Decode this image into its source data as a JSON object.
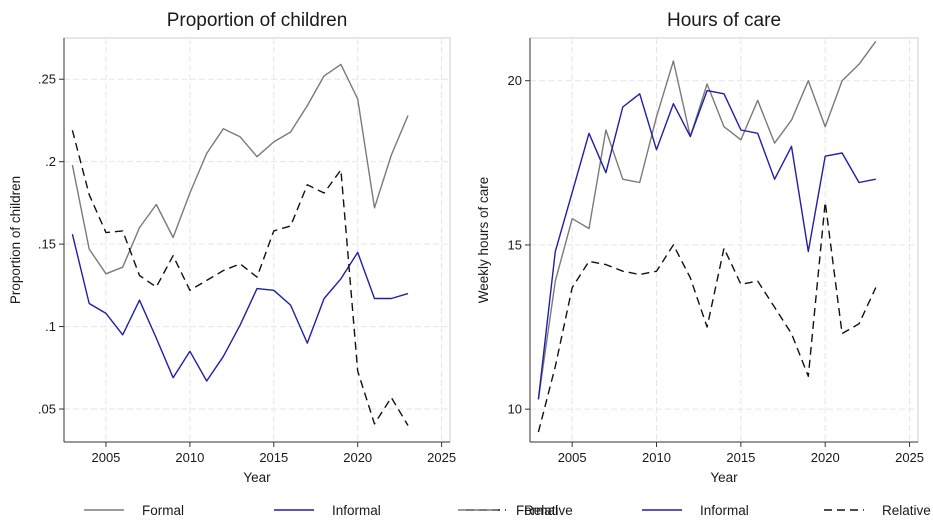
{
  "chart_data": [
    {
      "type": "line",
      "title": "Proportion of children",
      "xlabel": "Year",
      "ylabel": "Proportion of children",
      "xlim": [
        2002.5,
        2025.5
      ],
      "ylim": [
        0.03,
        0.275
      ],
      "xticks": [
        2005,
        2010,
        2015,
        2020,
        2025
      ],
      "xtick_labels": [
        "2005",
        "2010",
        "2015",
        "2020",
        "2025"
      ],
      "yticks": [
        0.05,
        0.1,
        0.15,
        0.2,
        0.25
      ],
      "ytick_labels": [
        ".05",
        ".1",
        ".15",
        ".2",
        ".25"
      ],
      "grid": true,
      "x": [
        2003,
        2004,
        2005,
        2006,
        2007,
        2008,
        2009,
        2010,
        2011,
        2012,
        2013,
        2014,
        2015,
        2016,
        2017,
        2018,
        2019,
        2020,
        2021,
        2022,
        2023
      ],
      "series": [
        {
          "name": "Formal",
          "color": "#7a7a7a",
          "dash": "solid",
          "values": [
            0.198,
            0.147,
            0.132,
            0.136,
            0.16,
            0.174,
            0.154,
            0.181,
            0.205,
            0.22,
            0.215,
            0.203,
            0.212,
            0.218,
            0.234,
            0.252,
            0.259,
            0.238,
            0.172,
            0.204,
            0.228
          ]
        },
        {
          "name": "Informal",
          "color": "#1f1fa8",
          "dash": "solid",
          "values": [
            0.156,
            0.114,
            0.108,
            0.095,
            0.116,
            0.093,
            0.069,
            0.085,
            0.067,
            0.082,
            0.101,
            0.123,
            0.122,
            0.113,
            0.09,
            0.117,
            0.129,
            0.145,
            0.117,
            0.117,
            0.12
          ]
        },
        {
          "name": "Relative",
          "color": "#111111",
          "dash": "dashed",
          "values": [
            0.219,
            0.18,
            0.157,
            0.158,
            0.131,
            0.124,
            0.143,
            0.122,
            0.128,
            0.134,
            0.138,
            0.13,
            0.158,
            0.161,
            0.186,
            0.181,
            0.195,
            0.073,
            0.041,
            0.057,
            0.04
          ]
        }
      ]
    },
    {
      "type": "line",
      "title": "Hours of care",
      "xlabel": "Year",
      "ylabel": "Weekly hours of care",
      "xlim": [
        2002.5,
        2025.5
      ],
      "ylim": [
        9.0,
        21.3
      ],
      "xticks": [
        2005,
        2010,
        2015,
        2020,
        2025
      ],
      "xtick_labels": [
        "2005",
        "2010",
        "2015",
        "2020",
        "2025"
      ],
      "yticks": [
        10,
        15,
        20
      ],
      "ytick_labels": [
        "10",
        "15",
        "20"
      ],
      "grid": true,
      "x": [
        2003,
        2004,
        2005,
        2006,
        2007,
        2008,
        2009,
        2010,
        2011,
        2012,
        2013,
        2014,
        2015,
        2016,
        2017,
        2018,
        2019,
        2020,
        2021,
        2022,
        2023
      ],
      "series": [
        {
          "name": "Formal",
          "color": "#7a7a7a",
          "dash": "solid",
          "values": [
            10.3,
            13.9,
            15.8,
            15.5,
            18.5,
            17.0,
            16.9,
            18.9,
            20.6,
            18.3,
            19.9,
            18.6,
            18.2,
            19.4,
            18.1,
            18.8,
            20.0,
            18.6,
            20.0,
            20.5,
            21.2
          ]
        },
        {
          "name": "Informal",
          "color": "#1f1fa8",
          "dash": "solid",
          "values": [
            10.3,
            14.8,
            16.6,
            18.4,
            17.2,
            19.2,
            19.6,
            17.9,
            19.3,
            18.3,
            19.7,
            19.6,
            18.5,
            18.4,
            17.0,
            18.0,
            14.8,
            17.7,
            17.8,
            16.9,
            17.0
          ]
        },
        {
          "name": "Relative",
          "color": "#111111",
          "dash": "dashed",
          "values": [
            9.3,
            11.3,
            13.7,
            14.5,
            14.4,
            14.2,
            14.1,
            14.2,
            15.0,
            14.0,
            12.5,
            14.9,
            13.8,
            13.9,
            13.1,
            12.3,
            11.0,
            16.3,
            12.3,
            12.6,
            13.7
          ]
        }
      ]
    }
  ],
  "legend": {
    "placement": "bottom",
    "items": [
      {
        "name": "Formal",
        "color": "#7a7a7a",
        "dash": "solid"
      },
      {
        "name": "Informal",
        "color": "#1f1fa8",
        "dash": "solid"
      },
      {
        "name": "Relative",
        "color": "#111111",
        "dash": "dashed"
      }
    ]
  }
}
